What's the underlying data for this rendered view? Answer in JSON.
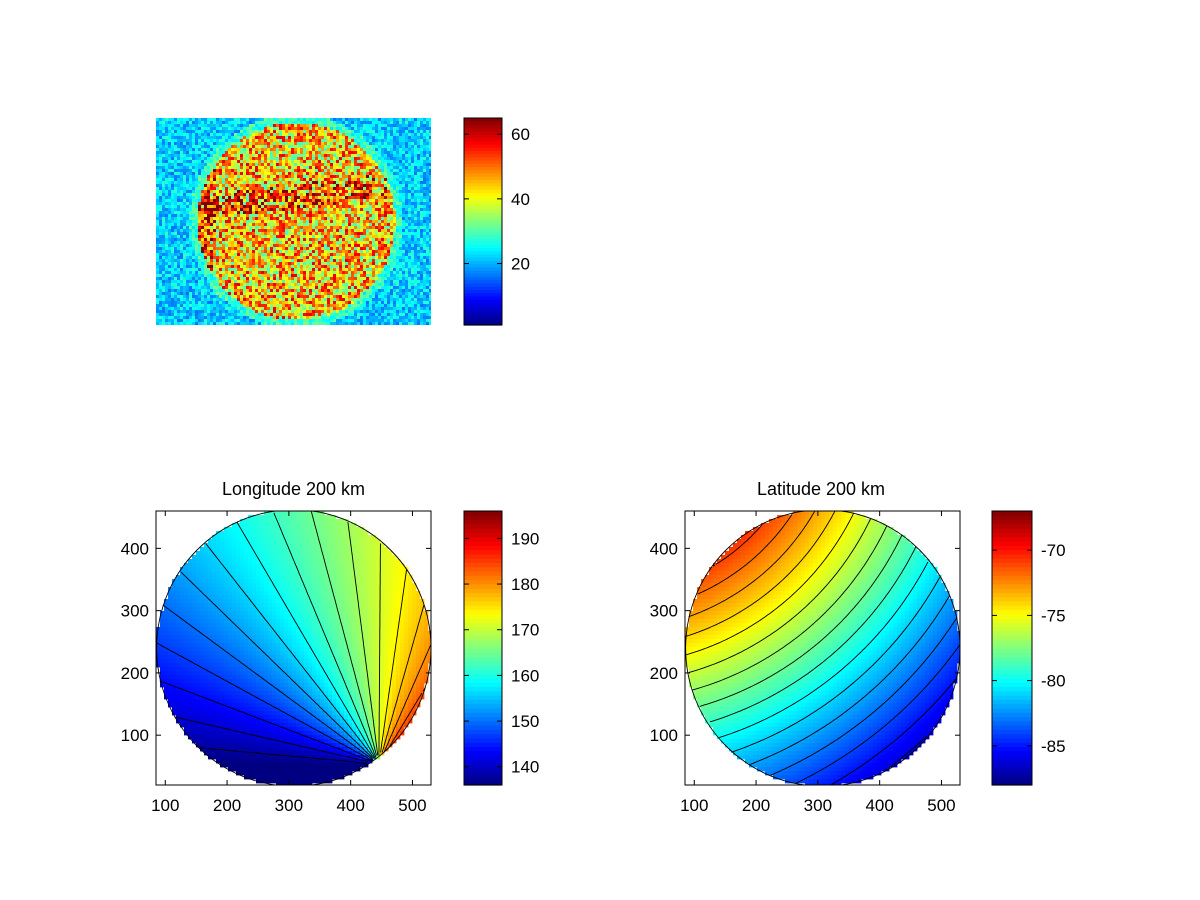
{
  "chart_data": [
    {
      "id": "speckle-image",
      "type": "heatmap",
      "title": "",
      "xlabel": "",
      "ylabel": "",
      "axes_visible": false,
      "colormap": "jet",
      "colorbar": {
        "min": 1,
        "max": 65,
        "ticks": [
          20,
          40,
          60
        ]
      },
      "description_values": {
        "background_level": 22,
        "disk_level": 44,
        "disk_edge_ring_level": 28
      }
    },
    {
      "id": "longitude-map",
      "type": "heatmap",
      "title": "Longitude 200 km",
      "xlabel": "",
      "ylabel": "",
      "xlim": [
        85,
        530
      ],
      "ylim": [
        20,
        460
      ],
      "xticks": [
        100,
        200,
        300,
        400,
        500
      ],
      "yticks": [
        100,
        200,
        300,
        400
      ],
      "disk": {
        "center": [
          308,
          240
        ],
        "radius_x": 222,
        "radius_y": 222
      },
      "colormap": "jet",
      "colorbar": {
        "min": 136,
        "max": 196,
        "ticks": [
          140,
          150,
          160,
          170,
          180,
          190
        ]
      },
      "contour_levels": [
        138,
        141,
        144,
        147,
        150,
        153,
        156,
        159,
        162,
        165,
        168,
        171,
        174,
        177,
        180,
        183,
        186,
        189,
        192,
        195
      ],
      "field_range": [
        136,
        196
      ],
      "grid": false
    },
    {
      "id": "latitude-map",
      "type": "heatmap",
      "title": "Latitude 200 km",
      "xlabel": "",
      "ylabel": "",
      "xlim": [
        85,
        530
      ],
      "ylim": [
        20,
        460
      ],
      "xticks": [
        100,
        200,
        300,
        400,
        500
      ],
      "yticks": [
        100,
        200,
        300,
        400
      ],
      "disk": {
        "center": [
          308,
          240
        ],
        "radius_x": 222,
        "radius_y": 222
      },
      "colormap": "jet",
      "colorbar": {
        "min": -88,
        "max": -67,
        "ticks": [
          -85,
          -80,
          -75,
          -70
        ]
      },
      "contour_levels": [
        -86,
        -85,
        -84,
        -83,
        -82,
        -81,
        -80,
        -79,
        -78,
        -77,
        -76,
        -75,
        -74,
        -73,
        -72,
        -71,
        -70,
        -69,
        -68
      ],
      "field_range": [
        -88,
        -67
      ],
      "grid": false
    }
  ]
}
